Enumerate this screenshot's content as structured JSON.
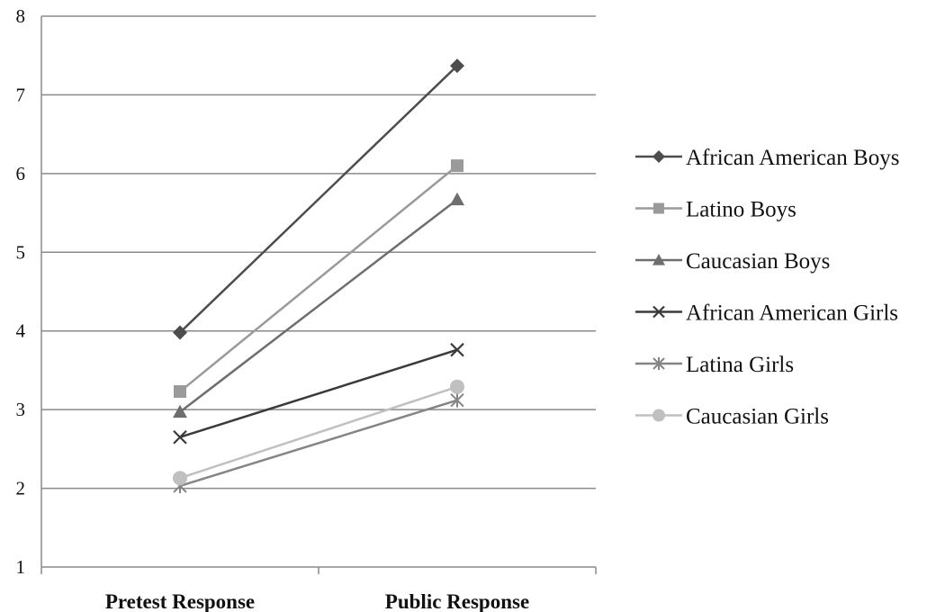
{
  "chart_data": {
    "type": "line",
    "title": "",
    "xlabel": "",
    "ylabel": "",
    "categories": [
      "Pretest Response",
      "Public Response"
    ],
    "ylim": [
      1,
      8
    ],
    "yticks": [
      "1",
      "2",
      "3",
      "4",
      "5",
      "6",
      "7",
      "8"
    ],
    "grid": true,
    "legend_position": "right",
    "series": [
      {
        "name": "African American Boys",
        "values": [
          3.98,
          7.37
        ],
        "color": "#4d4d4d",
        "marker": "diamond"
      },
      {
        "name": "Latino Boys",
        "values": [
          3.23,
          6.1
        ],
        "color": "#9a9a9a",
        "marker": "square"
      },
      {
        "name": "Caucasian Boys",
        "values": [
          2.97,
          5.67
        ],
        "color": "#6e6e6e",
        "marker": "triangle"
      },
      {
        "name": "African American Girls",
        "values": [
          2.65,
          3.76
        ],
        "color": "#3a3a3a",
        "marker": "x"
      },
      {
        "name": "Latina Girls",
        "values": [
          2.03,
          3.12
        ],
        "color": "#858585",
        "marker": "star"
      },
      {
        "name": "Caucasian Girls",
        "values": [
          2.13,
          3.29
        ],
        "color": "#c0c0c0",
        "marker": "circle"
      }
    ]
  }
}
